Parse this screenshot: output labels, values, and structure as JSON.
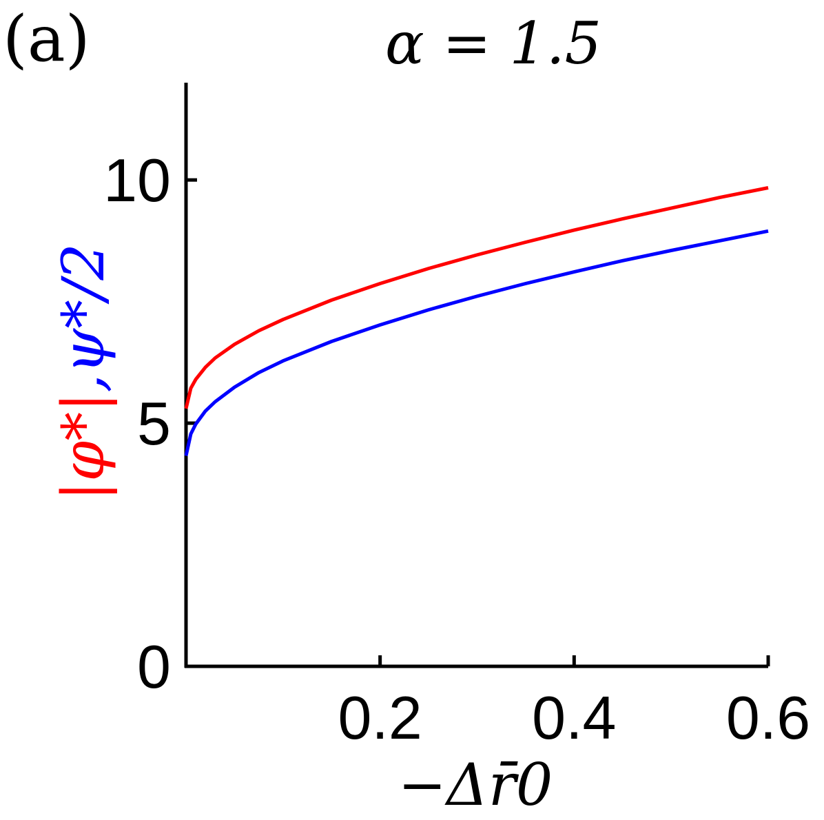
{
  "panel_label": "(a)",
  "chart_data": {
    "type": "line",
    "title": "α = 1.5",
    "xlabel": "−Δr̄0",
    "ylabel_parts": [
      {
        "text": "|φ*|",
        "color": "#ff0000"
      },
      {
        "text": ",",
        "color": "#0000ff"
      },
      {
        "text": "ψ*/2",
        "color": "#0000ff"
      }
    ],
    "xlim": [
      0,
      0.6
    ],
    "ylim": [
      0,
      12
    ],
    "x_ticks": [
      0.2,
      0.4,
      0.6
    ],
    "x_tick_labels": [
      "0.2",
      "0.4",
      "0.6"
    ],
    "y_ticks": [
      0,
      5,
      10
    ],
    "y_tick_labels": [
      "0",
      "5",
      "10"
    ],
    "grid": false,
    "legend": "none",
    "series": [
      {
        "color": "#ff0000",
        "x": [
          0,
          0.005,
          0.01,
          0.02,
          0.03,
          0.05,
          0.075,
          0.1,
          0.15,
          0.2,
          0.25,
          0.3,
          0.35,
          0.4,
          0.45,
          0.5,
          0.55,
          0.6
        ],
        "y": [
          5.3,
          5.72,
          5.9,
          6.15,
          6.34,
          6.62,
          6.9,
          7.13,
          7.53,
          7.87,
          8.18,
          8.46,
          8.72,
          8.97,
          9.2,
          9.42,
          9.64,
          9.84
        ]
      },
      {
        "color": "#0000ff",
        "x": [
          0,
          0.005,
          0.01,
          0.02,
          0.03,
          0.05,
          0.075,
          0.1,
          0.15,
          0.2,
          0.25,
          0.3,
          0.35,
          0.4,
          0.45,
          0.5,
          0.55,
          0.6
        ],
        "y": [
          4.33,
          4.78,
          4.98,
          5.25,
          5.44,
          5.74,
          6.04,
          6.28,
          6.68,
          7.02,
          7.33,
          7.61,
          7.87,
          8.11,
          8.34,
          8.55,
          8.75,
          8.95
        ]
      }
    ]
  }
}
